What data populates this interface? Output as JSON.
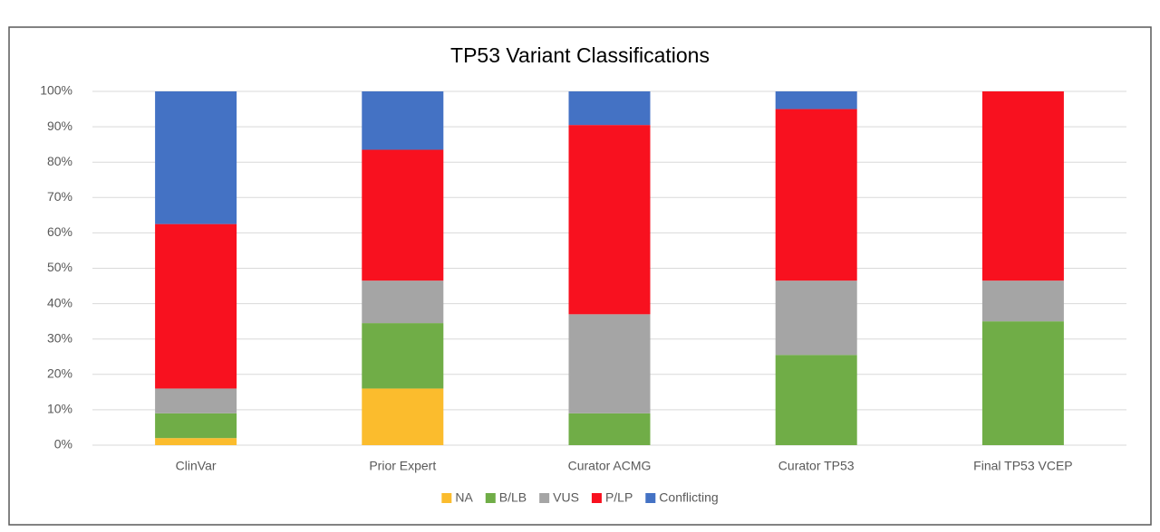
{
  "chart_data": {
    "type": "stacked_bar",
    "title": "TP53 Variant Classifications",
    "categories": [
      "ClinVar",
      "Prior Expert",
      "Curator ACMG",
      "Curator TP53",
      "Final TP53 VCEP"
    ],
    "series": [
      {
        "name": "NA",
        "color": "#fbbc2d",
        "values": [
          2,
          16,
          0,
          0,
          0
        ]
      },
      {
        "name": "B/LB",
        "color": "#70ad47",
        "values": [
          7,
          18.5,
          9,
          25.5,
          35
        ]
      },
      {
        "name": "VUS",
        "color": "#a5a5a5",
        "values": [
          7,
          12,
          28,
          21,
          11.5
        ]
      },
      {
        "name": "P/LP",
        "color": "#f8111f",
        "values": [
          46.5,
          37,
          53.5,
          48.5,
          53.5
        ]
      },
      {
        "name": "Conflicting",
        "color": "#4472c4",
        "values": [
          37.5,
          16.5,
          9.5,
          5,
          0
        ]
      }
    ],
    "ylim": [
      0,
      100
    ],
    "yticks": [
      {
        "value": 0,
        "label": "0%"
      },
      {
        "value": 10,
        "label": "10%"
      },
      {
        "value": 20,
        "label": "20%"
      },
      {
        "value": 30,
        "label": "30%"
      },
      {
        "value": 40,
        "label": "40%"
      },
      {
        "value": 50,
        "label": "50%"
      },
      {
        "value": 60,
        "label": "60%"
      },
      {
        "value": 70,
        "label": "70%"
      },
      {
        "value": 80,
        "label": "80%"
      },
      {
        "value": 90,
        "label": "90%"
      },
      {
        "value": 100,
        "label": "100%"
      }
    ],
    "grid": true,
    "legend": "bottom"
  }
}
